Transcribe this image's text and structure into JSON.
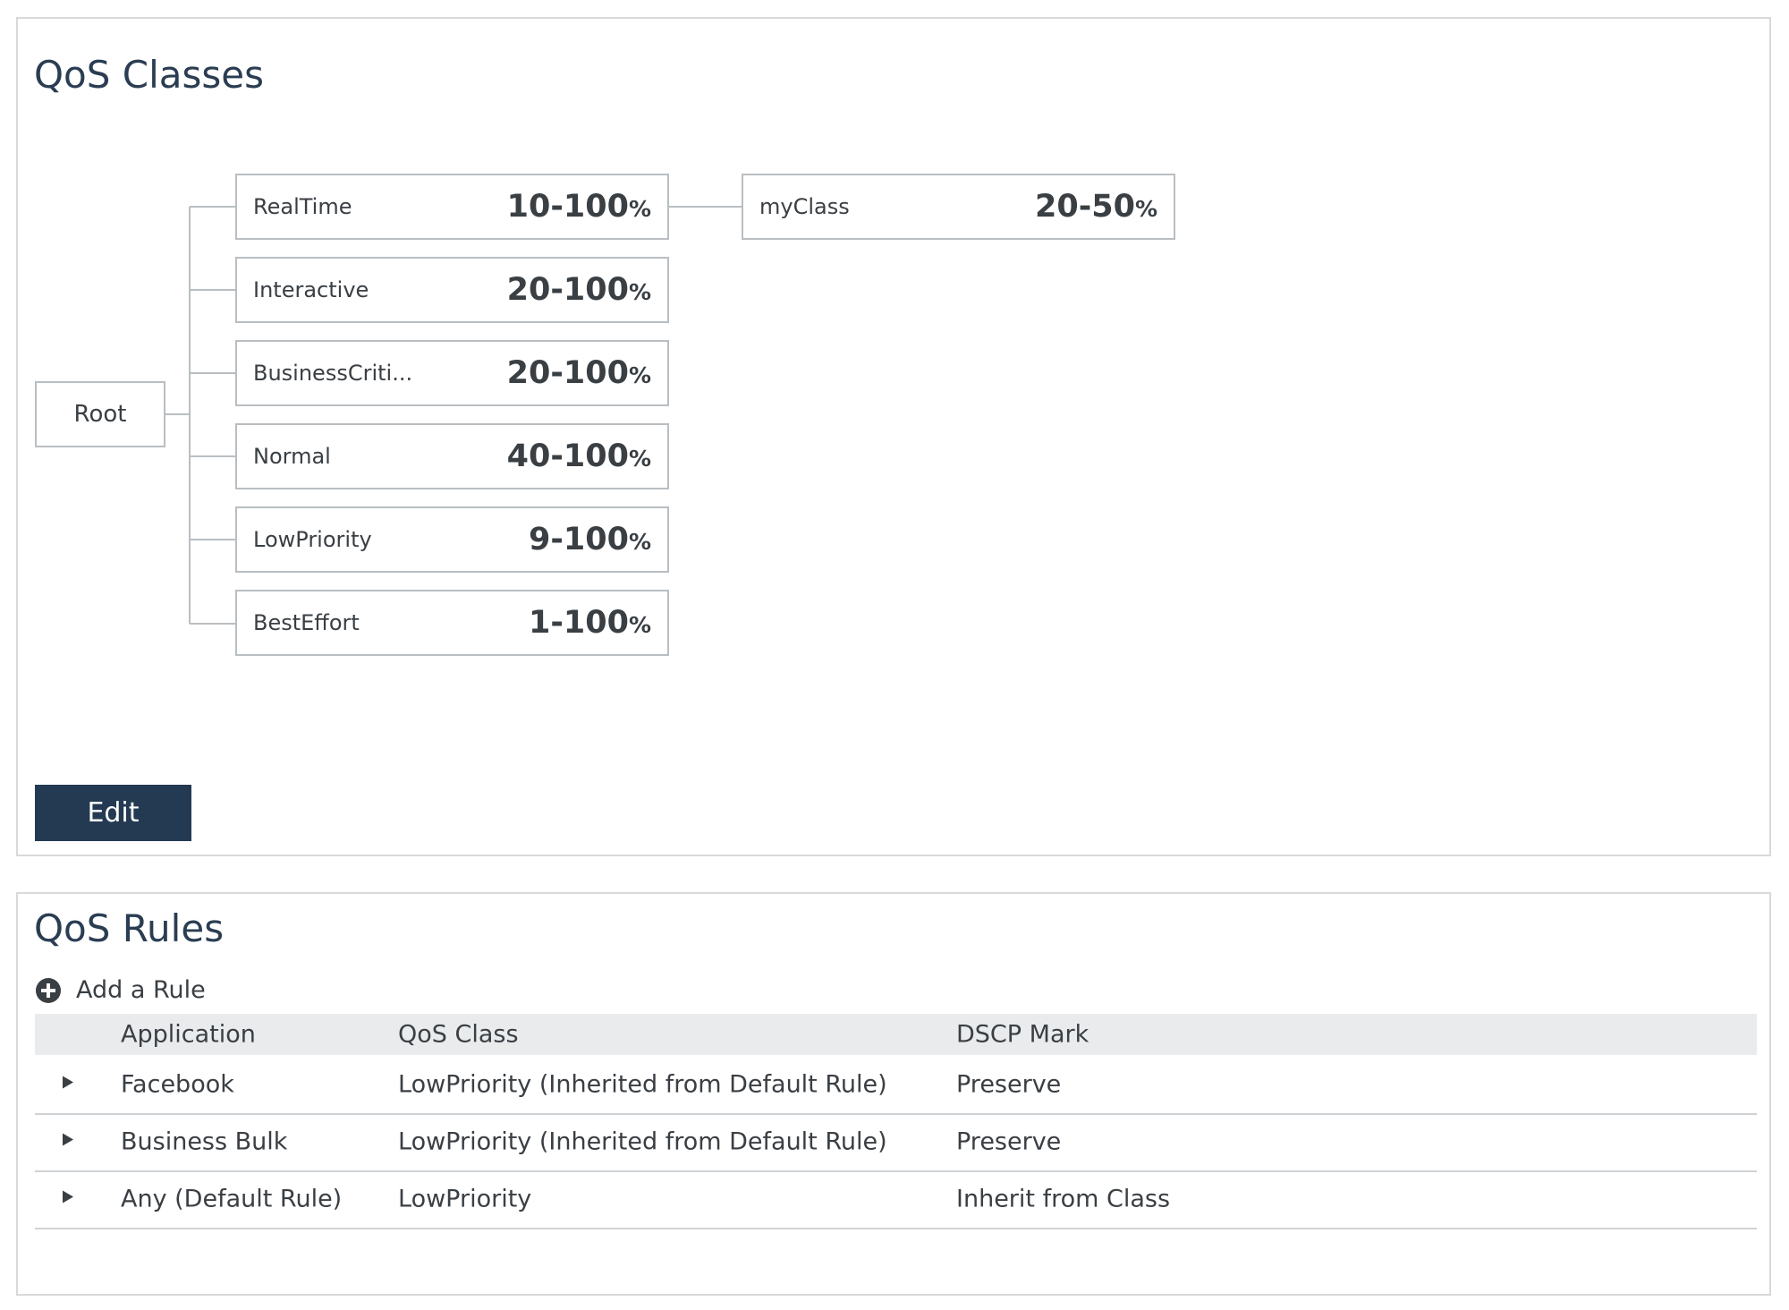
{
  "classes": {
    "title": "QoS Classes",
    "root": "Root",
    "nodes": [
      {
        "name": "RealTime",
        "range": "10-100",
        "unit": "%"
      },
      {
        "name": "Interactive",
        "range": "20-100",
        "unit": "%"
      },
      {
        "name": "BusinessCriti...",
        "range": "20-100",
        "unit": "%"
      },
      {
        "name": "Normal",
        "range": "40-100",
        "unit": "%"
      },
      {
        "name": "LowPriority",
        "range": "9-100",
        "unit": "%"
      },
      {
        "name": "BestEffort",
        "range": "1-100",
        "unit": "%"
      }
    ],
    "children": [
      {
        "name": "myClass",
        "range": "20-50",
        "unit": "%"
      }
    ],
    "edit_button": "Edit"
  },
  "rules": {
    "title": "QoS Rules",
    "add_rule": "Add a Rule",
    "columns": [
      "Application",
      "QoS Class",
      "DSCP Mark"
    ],
    "rows": [
      [
        "Facebook",
        "LowPriority (Inherited from Default Rule)",
        "Preserve"
      ],
      [
        "Business Bulk",
        "LowPriority (Inherited from Default Rule)",
        "Preserve"
      ],
      [
        "Any (Default Rule)",
        "LowPriority",
        "Inherit from Class"
      ]
    ]
  }
}
